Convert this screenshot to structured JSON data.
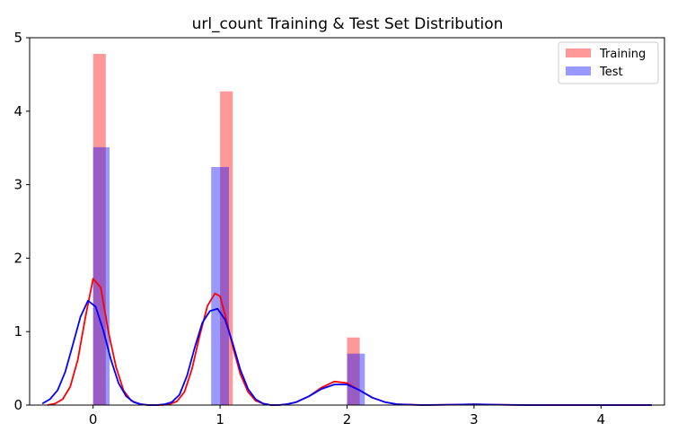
{
  "chart_data": {
    "type": "bar",
    "title": "url_count Training & Test Set Distribution",
    "xlabel": "",
    "ylabel": "",
    "xlim": [
      -0.5,
      4.5
    ],
    "ylim": [
      0,
      5
    ],
    "x_ticks": [
      0,
      1,
      2,
      3,
      4
    ],
    "y_ticks": [
      0,
      1,
      2,
      3,
      4,
      5
    ],
    "grid": false,
    "legend_position": "top-right",
    "series": [
      {
        "name": "Training",
        "color": "#ff0000",
        "bars": [
          {
            "x0": 0.0,
            "x1": 0.1,
            "height": 4.78
          },
          {
            "x0": 1.0,
            "x1": 1.1,
            "height": 4.27
          },
          {
            "x0": 2.0,
            "x1": 2.1,
            "height": 0.92
          }
        ],
        "kde": {
          "x": [
            -0.36,
            -0.3,
            -0.24,
            -0.18,
            -0.12,
            -0.06,
            0.0,
            0.06,
            0.12,
            0.18,
            0.24,
            0.3,
            0.36,
            0.42,
            0.48,
            0.54,
            0.6,
            0.66,
            0.72,
            0.78,
            0.84,
            0.9,
            0.96,
            1.0,
            1.04,
            1.1,
            1.16,
            1.22,
            1.28,
            1.34,
            1.4,
            1.46,
            1.52,
            1.6,
            1.7,
            1.8,
            1.9,
            2.0,
            2.1,
            2.2,
            2.3,
            2.4,
            2.6,
            2.8,
            3.0,
            3.2,
            3.4,
            3.8,
            4.4
          ],
          "y": [
            0.0,
            0.02,
            0.08,
            0.25,
            0.62,
            1.2,
            1.72,
            1.6,
            1.0,
            0.52,
            0.2,
            0.06,
            0.02,
            0.0,
            0.0,
            0.0,
            0.01,
            0.05,
            0.18,
            0.5,
            0.95,
            1.35,
            1.52,
            1.48,
            1.22,
            0.8,
            0.42,
            0.18,
            0.06,
            0.02,
            0.0,
            0.0,
            0.01,
            0.04,
            0.12,
            0.24,
            0.32,
            0.3,
            0.2,
            0.1,
            0.04,
            0.01,
            0.0,
            0.005,
            0.01,
            0.005,
            0.0,
            0.0,
            0.0
          ]
        }
      },
      {
        "name": "Test",
        "color": "#0000ff",
        "bars": [
          {
            "x0": 0.0,
            "x1": 0.13,
            "height": 3.51
          },
          {
            "x0": 0.93,
            "x1": 1.07,
            "height": 3.24
          },
          {
            "x0": 2.0,
            "x1": 2.14,
            "height": 0.7
          }
        ],
        "kde": {
          "x": [
            -0.4,
            -0.34,
            -0.28,
            -0.22,
            -0.16,
            -0.1,
            -0.04,
            0.02,
            0.08,
            0.14,
            0.2,
            0.26,
            0.32,
            0.38,
            0.44,
            0.5,
            0.56,
            0.62,
            0.68,
            0.74,
            0.8,
            0.86,
            0.92,
            0.98,
            1.04,
            1.1,
            1.16,
            1.22,
            1.28,
            1.34,
            1.4,
            1.46,
            1.52,
            1.6,
            1.7,
            1.8,
            1.9,
            2.0,
            2.1,
            2.2,
            2.3,
            2.4,
            2.6,
            2.8,
            3.0,
            3.2,
            3.4,
            3.8,
            4.4
          ],
          "y": [
            0.02,
            0.08,
            0.2,
            0.45,
            0.82,
            1.2,
            1.42,
            1.34,
            1.02,
            0.62,
            0.3,
            0.12,
            0.04,
            0.01,
            0.0,
            0.0,
            0.01,
            0.04,
            0.14,
            0.4,
            0.78,
            1.12,
            1.28,
            1.31,
            1.16,
            0.84,
            0.48,
            0.22,
            0.08,
            0.02,
            0.0,
            0.0,
            0.01,
            0.04,
            0.12,
            0.22,
            0.28,
            0.28,
            0.2,
            0.1,
            0.04,
            0.01,
            0.0,
            0.005,
            0.01,
            0.005,
            0.0,
            0.0,
            0.0
          ]
        }
      }
    ]
  }
}
